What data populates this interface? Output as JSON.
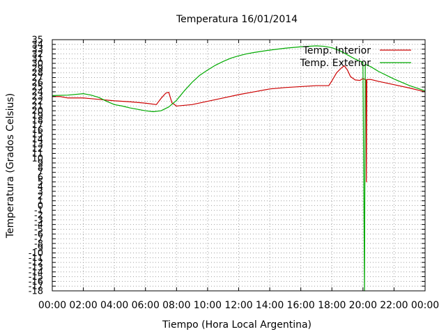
{
  "chart_data": {
    "type": "line",
    "title": "Temperatura 16/01/2014",
    "xlabel": "Tiempo (Hora Local Argentina)",
    "ylabel": "Temperatura (Grados Celsius)",
    "xlim": [
      0,
      24
    ],
    "ylim": [
      -18,
      35
    ],
    "x_tick_values": [
      0,
      2,
      4,
      6,
      8,
      10,
      12,
      14,
      16,
      18,
      20,
      22,
      24
    ],
    "x_tick_labels": [
      "00:00",
      "02:00",
      "04:00",
      "06:00",
      "08:00",
      "10:00",
      "12:00",
      "14:00",
      "16:00",
      "18:00",
      "20:00",
      "22:00",
      "00:00"
    ],
    "y_tick_values": [
      35,
      34,
      33,
      32,
      31,
      30,
      29,
      28,
      27,
      26,
      25,
      24,
      23,
      22,
      21,
      20,
      19,
      18,
      17,
      16,
      15,
      14,
      13,
      12,
      11,
      10,
      9,
      8,
      7,
      6,
      5,
      4,
      3,
      2,
      1,
      0,
      -1,
      -2,
      -3,
      -4,
      -5,
      -6,
      -7,
      -8,
      -9,
      -10,
      -11,
      -12,
      -13,
      -14,
      -15,
      -16,
      -17,
      -18
    ],
    "y_tick_labels": [
      "35",
      "34",
      "33",
      "32",
      "31",
      "30",
      "29",
      "28",
      "27",
      "26",
      "25",
      "24",
      "23",
      "22",
      "21",
      "20",
      "19",
      "18",
      "17",
      "16",
      "15",
      "14",
      "13",
      "12",
      "11",
      "10",
      "9",
      "8",
      "7",
      "6",
      "5",
      "4",
      "3",
      "2",
      "1",
      "0",
      "-1",
      "-2",
      "-3",
      "-4",
      "-5",
      "-6",
      "-7",
      "-8",
      "-9",
      "-10",
      "-11",
      "-12",
      "-13",
      "-14",
      "-15",
      "-16",
      "-17",
      "-18"
    ],
    "grid": true,
    "legend_position": "top-right",
    "series": [
      {
        "name": "Temp. Interior",
        "color": "#cc0000",
        "points": [
          [
            0.0,
            23.0
          ],
          [
            0.5,
            23.0
          ],
          [
            1.0,
            22.7
          ],
          [
            2.0,
            22.7
          ],
          [
            3.0,
            22.4
          ],
          [
            4.0,
            22.1
          ],
          [
            5.0,
            21.9
          ],
          [
            6.0,
            21.6
          ],
          [
            6.7,
            21.3
          ],
          [
            7.0,
            22.6
          ],
          [
            7.3,
            23.7
          ],
          [
            7.5,
            23.9
          ],
          [
            7.7,
            21.7
          ],
          [
            8.0,
            21.0
          ],
          [
            9.0,
            21.3
          ],
          [
            10.0,
            22.0
          ],
          [
            11.0,
            22.7
          ],
          [
            12.0,
            23.4
          ],
          [
            13.0,
            24.0
          ],
          [
            14.0,
            24.6
          ],
          [
            15.0,
            24.9
          ],
          [
            16.0,
            25.1
          ],
          [
            17.0,
            25.3
          ],
          [
            17.8,
            25.3
          ],
          [
            18.0,
            26.3
          ],
          [
            18.3,
            28.0
          ],
          [
            18.6,
            29.0
          ],
          [
            18.8,
            29.5
          ],
          [
            19.0,
            28.6
          ],
          [
            19.2,
            27.2
          ],
          [
            19.5,
            26.5
          ],
          [
            19.8,
            26.4
          ],
          [
            20.0,
            26.8
          ],
          [
            20.2,
            26.5
          ],
          [
            20.22,
            5.0
          ],
          [
            20.25,
            26.6
          ],
          [
            20.5,
            26.6
          ],
          [
            21.0,
            26.2
          ],
          [
            22.0,
            25.5
          ],
          [
            23.0,
            24.8
          ],
          [
            24.0,
            24.0
          ]
        ]
      },
      {
        "name": "Temp. Exterior",
        "color": "#00aa00",
        "points": [
          [
            0.0,
            23.2
          ],
          [
            1.0,
            23.3
          ],
          [
            2.0,
            23.6
          ],
          [
            2.5,
            23.3
          ],
          [
            3.0,
            22.8
          ],
          [
            3.5,
            22.0
          ],
          [
            4.0,
            21.3
          ],
          [
            4.5,
            21.0
          ],
          [
            5.0,
            20.6
          ],
          [
            6.0,
            20.0
          ],
          [
            6.5,
            19.8
          ],
          [
            7.0,
            20.0
          ],
          [
            7.5,
            20.8
          ],
          [
            8.0,
            22.2
          ],
          [
            8.5,
            24.2
          ],
          [
            9.0,
            26.0
          ],
          [
            9.5,
            27.5
          ],
          [
            10.0,
            28.6
          ],
          [
            10.5,
            29.6
          ],
          [
            11.0,
            30.4
          ],
          [
            11.5,
            31.1
          ],
          [
            12.0,
            31.6
          ],
          [
            12.5,
            32.0
          ],
          [
            13.0,
            32.3
          ],
          [
            14.0,
            32.8
          ],
          [
            15.0,
            33.2
          ],
          [
            16.0,
            33.5
          ],
          [
            17.0,
            33.7
          ],
          [
            17.5,
            33.6
          ],
          [
            18.0,
            33.3
          ],
          [
            18.5,
            32.7
          ],
          [
            19.0,
            31.8
          ],
          [
            19.5,
            30.9
          ],
          [
            20.0,
            30.2
          ],
          [
            20.1,
            -18.0
          ],
          [
            20.15,
            29.8
          ],
          [
            20.5,
            29.3
          ],
          [
            21.0,
            28.3
          ],
          [
            22.0,
            26.7
          ],
          [
            23.0,
            25.3
          ],
          [
            24.0,
            24.2
          ]
        ]
      }
    ]
  }
}
